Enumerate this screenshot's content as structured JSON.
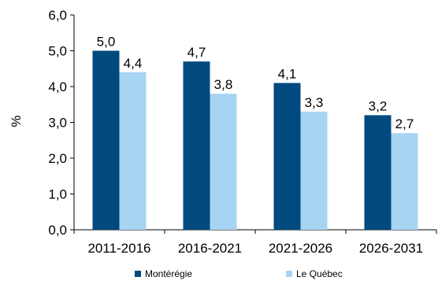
{
  "chart_data": {
    "type": "bar",
    "categories": [
      "2011-2016",
      "2016-2021",
      "2021-2026",
      "2026-2031"
    ],
    "series": [
      {
        "name": "Montérégie",
        "values": [
          5.0,
          4.7,
          4.1,
          3.2
        ],
        "labels": [
          "5,0",
          "4,7",
          "4,1",
          "3,2"
        ],
        "color": "#004a7f"
      },
      {
        "name": "Le Québec",
        "values": [
          4.4,
          3.8,
          3.3,
          2.7
        ],
        "labels": [
          "4,4",
          "3,8",
          "3,3",
          "2,7"
        ],
        "color": "#a7d4f2"
      }
    ],
    "ylabel": "%",
    "ylim": [
      0,
      6
    ],
    "yticks": [
      0,
      1,
      2,
      3,
      4,
      5,
      6
    ],
    "ytick_labels": [
      "0,0",
      "1,0",
      "2,0",
      "3,0",
      "4,0",
      "5,0",
      "6,0"
    ],
    "grid": false,
    "legend_position": "bottom"
  }
}
